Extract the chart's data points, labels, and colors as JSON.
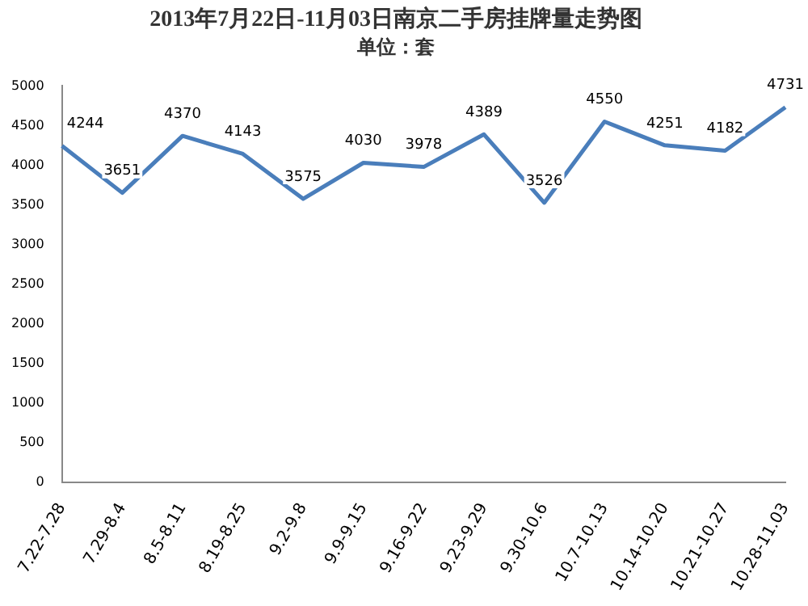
{
  "chart_data": {
    "type": "line",
    "title": "2013年7月22日-11月03日南京二手房挂牌量走势图",
    "subtitle": "单位：套",
    "categories": [
      "7.22-7.28",
      "7.29-8.4",
      "8.5-8.11",
      "8.19-8.25",
      "9.2-9.8",
      "9.9-9.15",
      "9.16-9.22",
      "9.23-9.29",
      "9.30-10.6",
      "10.7-10.13",
      "10.14-10.20",
      "10.21-10.27",
      "10.28-11.03"
    ],
    "series": [
      {
        "color": "#4a7ebb",
        "values": [
          4244,
          3651,
          4370,
          4143,
          3575,
          4030,
          3978,
          4389,
          3526,
          4550,
          4251,
          4182,
          4731
        ]
      }
    ],
    "ylim": [
      0,
      5000
    ],
    "yticks": [
      0,
      500,
      1000,
      1500,
      2000,
      2500,
      3000,
      3500,
      4000,
      4500,
      5000
    ],
    "grid": false,
    "legend": false,
    "marker": "none",
    "line_style": "solid",
    "data_labels": true
  }
}
